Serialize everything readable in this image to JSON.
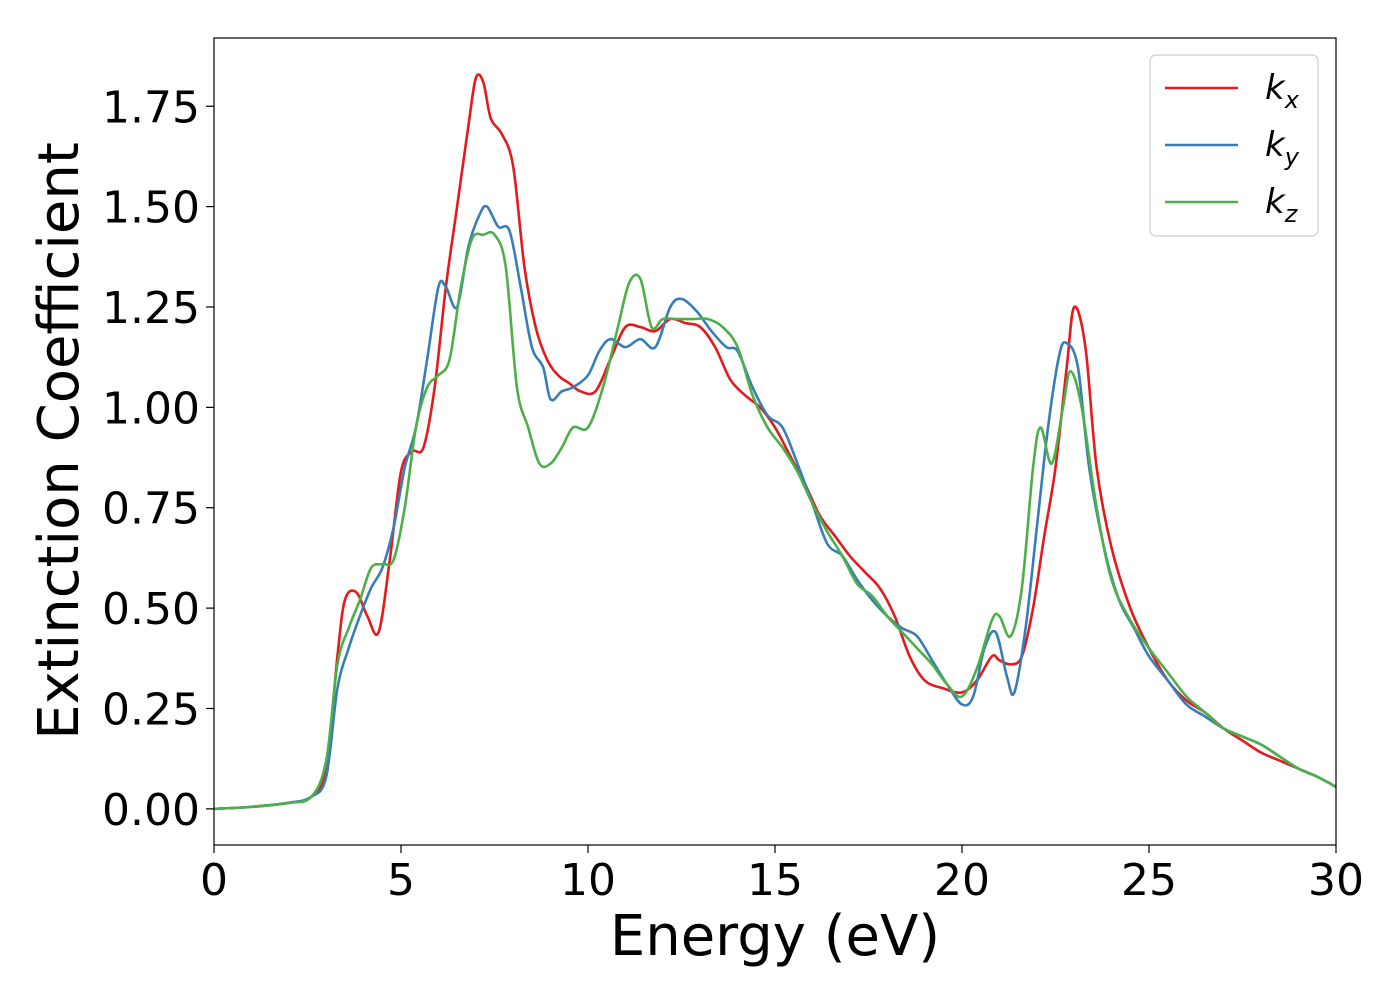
{
  "chart_data": {
    "type": "line",
    "xlabel": "Energy (eV)",
    "ylabel": "Extinction Coefficient",
    "xlim": [
      0,
      30
    ],
    "ylim": [
      -0.09,
      1.92
    ],
    "xticks": [
      0,
      5,
      10,
      15,
      20,
      25,
      30
    ],
    "xtick_labels": [
      "0",
      "5",
      "10",
      "15",
      "20",
      "25",
      "30"
    ],
    "yticks": [
      0.0,
      0.25,
      0.5,
      0.75,
      1.0,
      1.25,
      1.5,
      1.75
    ],
    "ytick_labels": [
      "0.00",
      "0.25",
      "0.50",
      "0.75",
      "1.00",
      "1.25",
      "1.50",
      "1.75"
    ],
    "grid": false,
    "legend_position": "top-right",
    "series": [
      {
        "name": "k",
        "subscript": "x",
        "color": "#e41a1c",
        "x": [
          0,
          1,
          2,
          2.6,
          3.0,
          3.3,
          3.5,
          3.8,
          4.1,
          4.4,
          4.7,
          5.0,
          5.3,
          5.6,
          5.9,
          6.2,
          6.5,
          6.8,
          7.0,
          7.2,
          7.4,
          7.7,
          8.0,
          8.3,
          8.6,
          8.9,
          9.2,
          9.5,
          9.8,
          10.2,
          10.6,
          11.0,
          11.4,
          11.8,
          12.2,
          12.6,
          13.0,
          13.4,
          13.8,
          14.2,
          14.6,
          15.0,
          15.4,
          15.8,
          16.2,
          16.6,
          17.0,
          17.4,
          17.8,
          18.2,
          18.6,
          19.0,
          19.5,
          20.0,
          20.4,
          20.8,
          21.0,
          21.3,
          21.6,
          21.9,
          22.2,
          22.5,
          22.8,
          23.0,
          23.3,
          23.6,
          24.0,
          24.5,
          25.0,
          25.5,
          26.0,
          26.5,
          27.0,
          27.5,
          28.0,
          28.5,
          29.0,
          29.5,
          30.0
        ],
        "y": [
          0.0,
          0.005,
          0.015,
          0.03,
          0.1,
          0.38,
          0.52,
          0.54,
          0.48,
          0.44,
          0.62,
          0.84,
          0.89,
          0.9,
          1.05,
          1.3,
          1.5,
          1.7,
          1.82,
          1.81,
          1.72,
          1.68,
          1.6,
          1.35,
          1.2,
          1.12,
          1.08,
          1.06,
          1.04,
          1.04,
          1.12,
          1.2,
          1.2,
          1.19,
          1.22,
          1.21,
          1.2,
          1.15,
          1.07,
          1.03,
          1.0,
          0.95,
          0.88,
          0.81,
          0.73,
          0.68,
          0.63,
          0.59,
          0.55,
          0.48,
          0.38,
          0.32,
          0.3,
          0.29,
          0.32,
          0.38,
          0.37,
          0.36,
          0.38,
          0.5,
          0.68,
          0.85,
          1.1,
          1.25,
          1.15,
          0.85,
          0.65,
          0.5,
          0.4,
          0.32,
          0.27,
          0.24,
          0.2,
          0.17,
          0.14,
          0.12,
          0.1,
          0.08,
          0.055
        ]
      },
      {
        "name": "k",
        "subscript": "y",
        "color": "#377eb8",
        "x": [
          0,
          1,
          2,
          2.6,
          3.0,
          3.3,
          3.6,
          3.9,
          4.2,
          4.5,
          4.8,
          5.1,
          5.4,
          5.7,
          6.0,
          6.2,
          6.5,
          6.8,
          7.1,
          7.3,
          7.6,
          7.9,
          8.2,
          8.5,
          8.8,
          9.0,
          9.3,
          9.6,
          10.0,
          10.3,
          10.6,
          11.0,
          11.4,
          11.8,
          12.2,
          12.5,
          12.9,
          13.3,
          13.7,
          14.0,
          14.4,
          14.8,
          15.2,
          15.6,
          16.0,
          16.4,
          16.8,
          17.2,
          17.6,
          18.0,
          18.4,
          18.8,
          19.2,
          19.6,
          20.0,
          20.3,
          20.6,
          20.9,
          21.2,
          21.4,
          21.7,
          22.0,
          22.3,
          22.6,
          22.8,
          23.1,
          23.4,
          23.8,
          24.2,
          24.6,
          25.0,
          25.5,
          26.0,
          26.5,
          27.0,
          27.5,
          28.0,
          28.5,
          29.0,
          29.5,
          30.0
        ],
        "y": [
          0.0,
          0.005,
          0.015,
          0.03,
          0.08,
          0.3,
          0.4,
          0.48,
          0.55,
          0.6,
          0.7,
          0.85,
          0.95,
          1.12,
          1.3,
          1.3,
          1.25,
          1.4,
          1.48,
          1.5,
          1.45,
          1.44,
          1.3,
          1.15,
          1.1,
          1.02,
          1.04,
          1.05,
          1.08,
          1.14,
          1.17,
          1.15,
          1.17,
          1.15,
          1.25,
          1.27,
          1.24,
          1.19,
          1.15,
          1.14,
          1.05,
          0.98,
          0.95,
          0.86,
          0.76,
          0.66,
          0.63,
          0.57,
          0.52,
          0.48,
          0.45,
          0.43,
          0.37,
          0.31,
          0.26,
          0.28,
          0.4,
          0.44,
          0.33,
          0.29,
          0.45,
          0.7,
          0.95,
          1.13,
          1.16,
          1.1,
          0.85,
          0.65,
          0.52,
          0.45,
          0.38,
          0.32,
          0.26,
          0.23,
          0.2,
          0.18,
          0.16,
          0.13,
          0.1,
          0.08,
          0.055
        ]
      },
      {
        "name": "k",
        "subscript": "z",
        "color": "#4daf4a",
        "x": [
          0,
          1,
          2,
          2.6,
          3.0,
          3.3,
          3.6,
          3.9,
          4.2,
          4.5,
          4.8,
          5.1,
          5.4,
          5.7,
          6.0,
          6.3,
          6.6,
          6.9,
          7.2,
          7.5,
          7.8,
          8.1,
          8.4,
          8.7,
          9.0,
          9.3,
          9.6,
          10.0,
          10.4,
          10.8,
          11.1,
          11.4,
          11.7,
          12.0,
          12.4,
          12.8,
          13.2,
          13.6,
          14.0,
          14.4,
          14.8,
          15.2,
          15.6,
          16.0,
          16.4,
          16.8,
          17.2,
          17.6,
          18.0,
          18.4,
          18.8,
          19.2,
          19.6,
          20.0,
          20.4,
          20.8,
          21.0,
          21.3,
          21.6,
          21.9,
          22.1,
          22.4,
          22.7,
          22.9,
          23.2,
          23.6,
          24.0,
          24.5,
          25.0,
          25.5,
          26.0,
          26.5,
          27.0,
          27.5,
          28.0,
          28.5,
          29.0,
          29.5,
          30.0
        ],
        "y": [
          0.0,
          0.005,
          0.015,
          0.03,
          0.12,
          0.36,
          0.45,
          0.52,
          0.6,
          0.61,
          0.62,
          0.75,
          0.95,
          1.05,
          1.08,
          1.12,
          1.3,
          1.42,
          1.43,
          1.43,
          1.35,
          1.05,
          0.95,
          0.86,
          0.86,
          0.9,
          0.95,
          0.95,
          1.05,
          1.2,
          1.31,
          1.32,
          1.2,
          1.22,
          1.22,
          1.22,
          1.22,
          1.2,
          1.15,
          1.03,
          0.95,
          0.9,
          0.84,
          0.76,
          0.69,
          0.63,
          0.56,
          0.53,
          0.48,
          0.44,
          0.4,
          0.36,
          0.31,
          0.28,
          0.35,
          0.47,
          0.48,
          0.43,
          0.55,
          0.85,
          0.95,
          0.86,
          1.0,
          1.09,
          1.0,
          0.75,
          0.57,
          0.47,
          0.4,
          0.34,
          0.28,
          0.24,
          0.2,
          0.18,
          0.16,
          0.13,
          0.1,
          0.08,
          0.055
        ]
      }
    ]
  }
}
